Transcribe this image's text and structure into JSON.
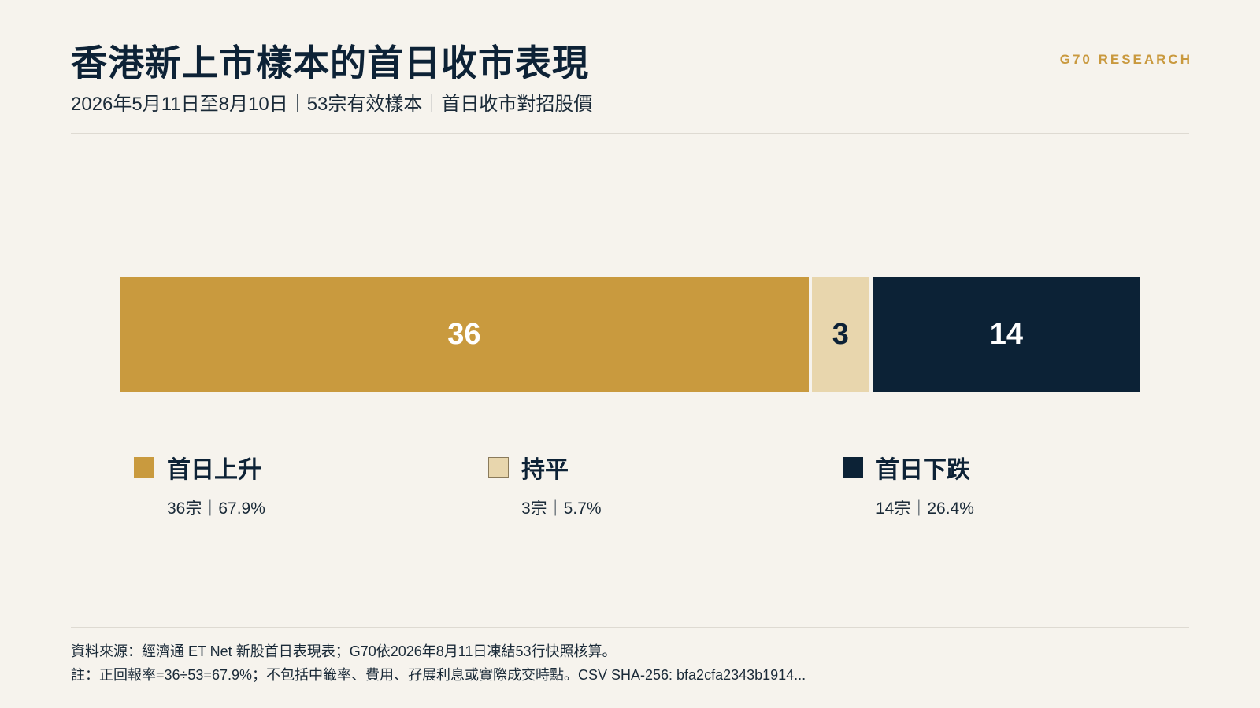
{
  "header": {
    "title": "香港新上市樣本的首日收市表現",
    "subtitle": "2026年5月11日至8月10日｜53宗有效樣本｜首日收市對招股價",
    "brand": "G70 RESEARCH"
  },
  "chart_data": {
    "type": "bar",
    "orientation": "horizontal-stacked",
    "total": 53,
    "series": [
      {
        "name": "首日上升",
        "value": 36,
        "color": "#c99a3e",
        "text_color": "#ffffff",
        "stat": "36宗｜67.9%"
      },
      {
        "name": "持平",
        "value": 3,
        "color": "#e8d6ad",
        "text_color": "#0d2236",
        "stat": "3宗｜5.7%"
      },
      {
        "name": "首日下跌",
        "value": 14,
        "color": "#0c2236",
        "text_color": "#ffffff",
        "stat": "14宗｜26.4%"
      }
    ],
    "legend_placement": "bottom"
  },
  "footer": {
    "source": "資料來源：經濟通 ET Net 新股首日表現表；G70依2026年8月11日凍結53行快照核算。",
    "note": "註：正回報率=36÷53=67.9%；不包括中籤率、費用、孖展利息或實際成交時點。CSV SHA-256: bfa2cfa2343b1914..."
  }
}
